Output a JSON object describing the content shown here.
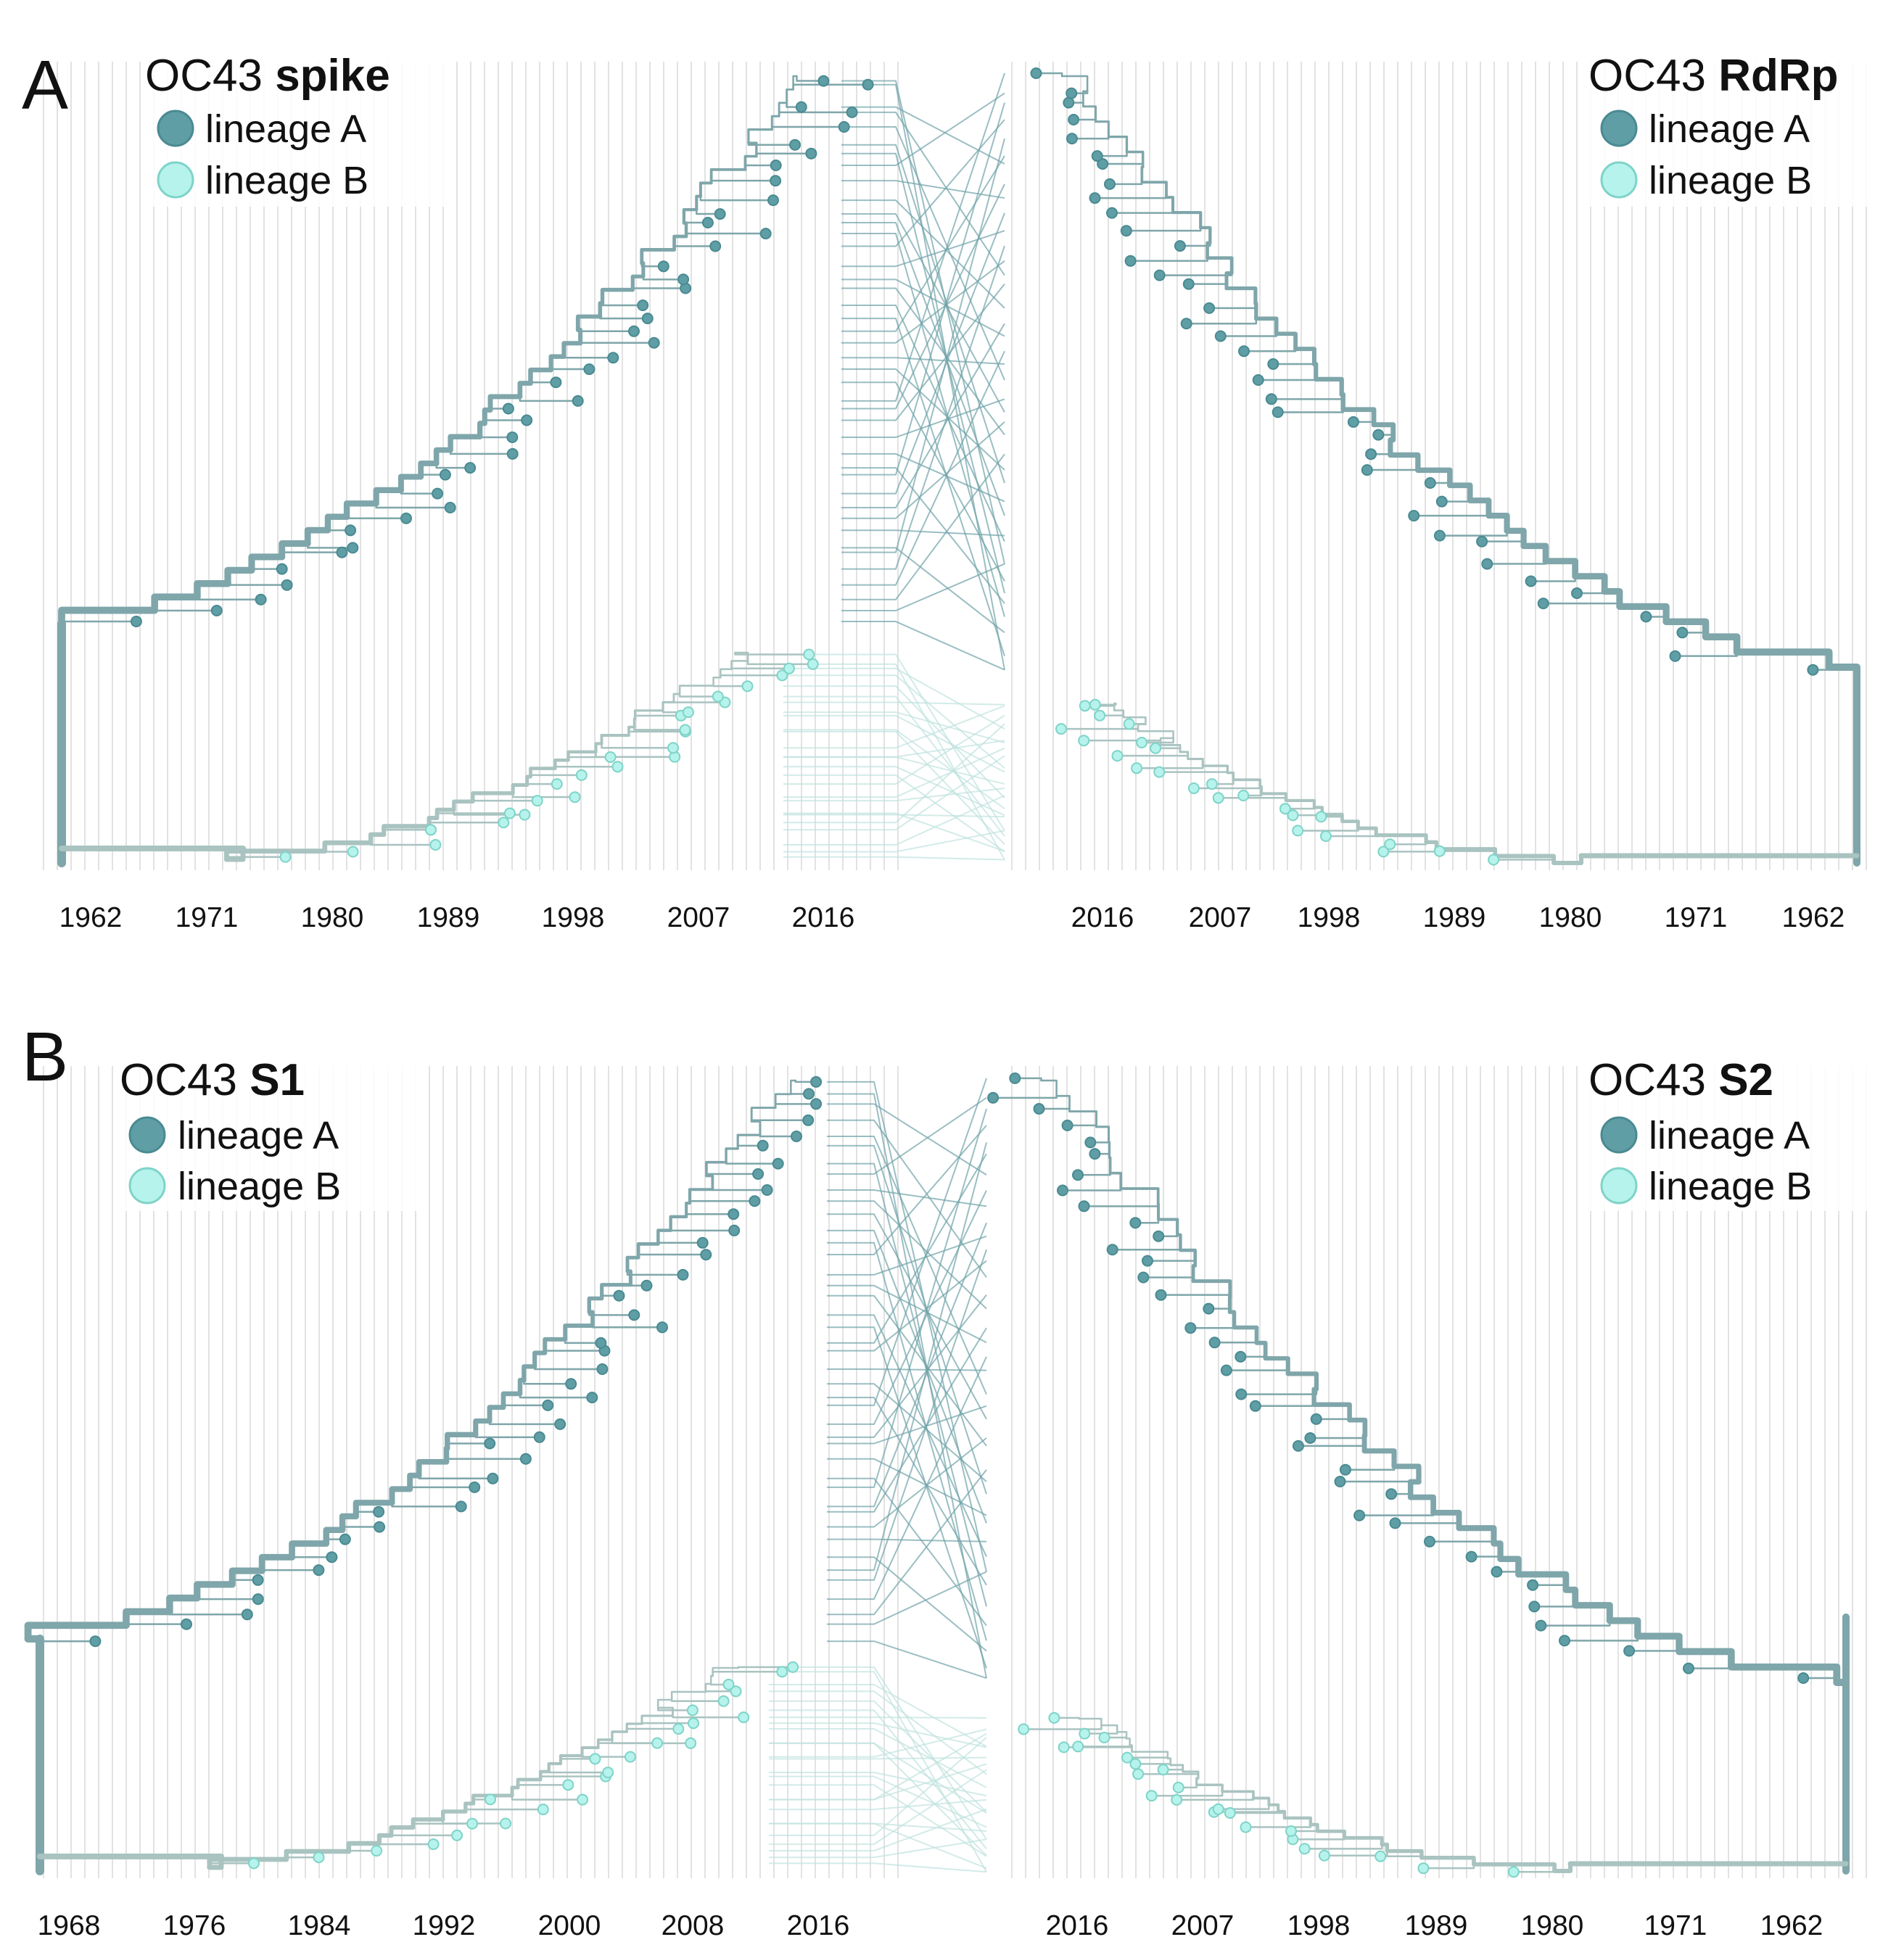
{
  "colors": {
    "lineage_a": "#5f9ea5",
    "lineage_a_stroke": "#4a8a92",
    "lineage_b": "#b5f3ec",
    "lineage_b_stroke": "#7fd3c8",
    "branch_a": "#7fa6aa",
    "branch_b": "#a9c3c0",
    "tangle_a": "#6fa3a8",
    "tangle_b": "#bfe3de",
    "grid": "#e2e2e2"
  },
  "panels": [
    {
      "letter": "A",
      "left_tree": {
        "title_prefix": "OC43 ",
        "title_bold": "spike",
        "legend": [
          {
            "label": "lineage A",
            "lineage": "a"
          },
          {
            "label": "lineage B",
            "lineage": "b"
          }
        ],
        "axis_ticks": [
          "1962",
          "1971",
          "1980",
          "1989",
          "1998",
          "2007",
          "2016"
        ]
      },
      "right_tree": {
        "title_prefix": "OC43 ",
        "title_bold": "RdRp",
        "legend": [
          {
            "label": "lineage A",
            "lineage": "a"
          },
          {
            "label": "lineage B",
            "lineage": "b"
          }
        ],
        "axis_ticks": [
          "2016",
          "2007",
          "1998",
          "1989",
          "1980",
          "1971",
          "1962"
        ]
      }
    },
    {
      "letter": "B",
      "left_tree": {
        "title_prefix": "OC43 ",
        "title_bold": "S1",
        "legend": [
          {
            "label": "lineage A",
            "lineage": "a"
          },
          {
            "label": "lineage B",
            "lineage": "b"
          }
        ],
        "axis_ticks": [
          "1968",
          "1976",
          "1984",
          "1992",
          "2000",
          "2008",
          "2016"
        ]
      },
      "right_tree": {
        "title_prefix": "OC43 ",
        "title_bold": "S2",
        "legend": [
          {
            "label": "lineage A",
            "lineage": "a"
          },
          {
            "label": "lineage B",
            "lineage": "b"
          }
        ],
        "axis_ticks": [
          "2016",
          "2007",
          "1998",
          "1989",
          "1980",
          "1971",
          "1962"
        ]
      }
    }
  ]
}
